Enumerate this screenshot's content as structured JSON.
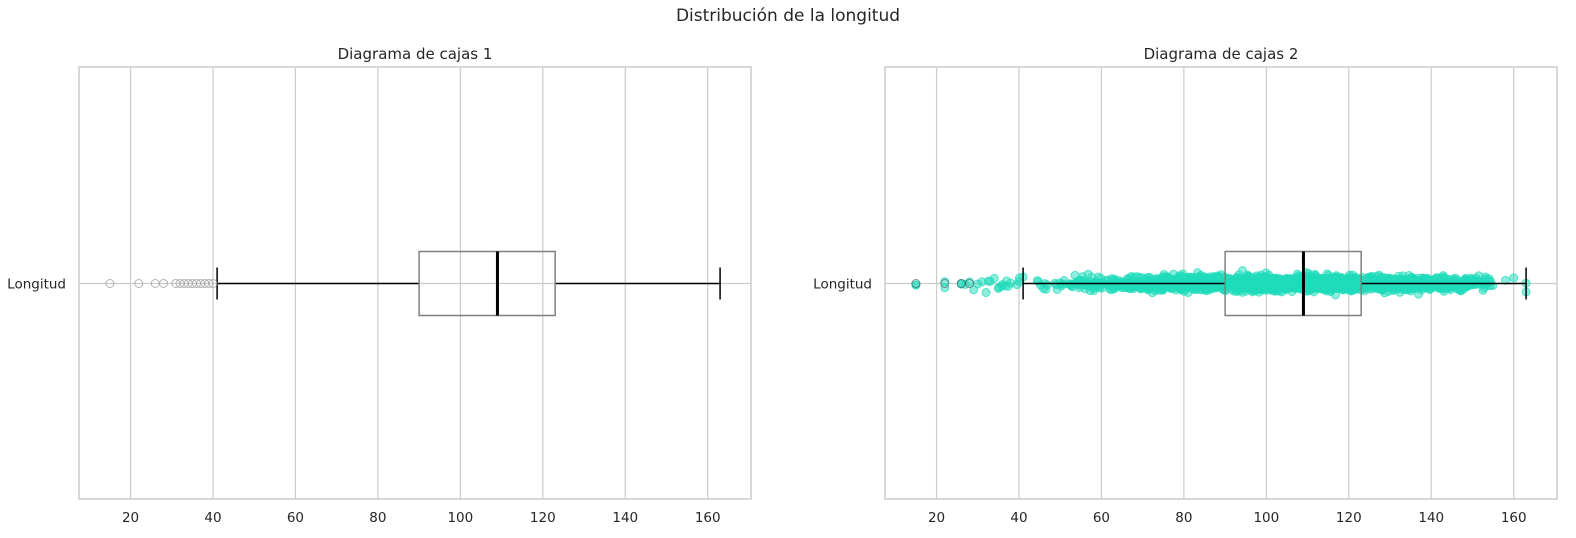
{
  "figure_title": "Distribución de la longitud",
  "chart_data": [
    {
      "type": "box",
      "orientation": "horizontal",
      "title": "Diagrama de cajas 1",
      "categories": [
        "Longitud"
      ],
      "xticks": [
        20,
        40,
        60,
        80,
        100,
        120,
        140,
        160
      ],
      "xlim": [
        7.5,
        170.5
      ],
      "grid": true,
      "box": {
        "q1": 90,
        "median": 109,
        "q3": 123,
        "whisker_low": 41,
        "whisker_high": 163
      },
      "outliers": [
        15,
        22,
        26,
        28,
        31,
        32,
        33,
        34,
        35,
        36,
        37,
        38,
        39,
        40
      ],
      "colors": {
        "box_edge": "#808080",
        "median": "#000000",
        "whisker": "#000000",
        "outlier_edge": "#999999"
      }
    },
    {
      "type": "box",
      "orientation": "horizontal",
      "title": "Diagrama de cajas 2",
      "categories": [
        "Longitud"
      ],
      "xticks": [
        20,
        40,
        60,
        80,
        100,
        120,
        140,
        160
      ],
      "xlim": [
        7.5,
        170.5
      ],
      "grid": true,
      "box": {
        "q1": 90,
        "median": 109,
        "q3": 123,
        "whisker_low": 41,
        "whisker_high": 163
      },
      "outliers": [
        15,
        22,
        26,
        28
      ],
      "jitter_points": {
        "min": 15,
        "max": 163,
        "dense_range": [
          30,
          150
        ],
        "color": "#1fdbbb",
        "alpha": 0.5
      },
      "colors": {
        "box_edge": "#808080",
        "median": "#000000",
        "whisker": "#000000",
        "points": "#1fdbbb"
      }
    }
  ]
}
